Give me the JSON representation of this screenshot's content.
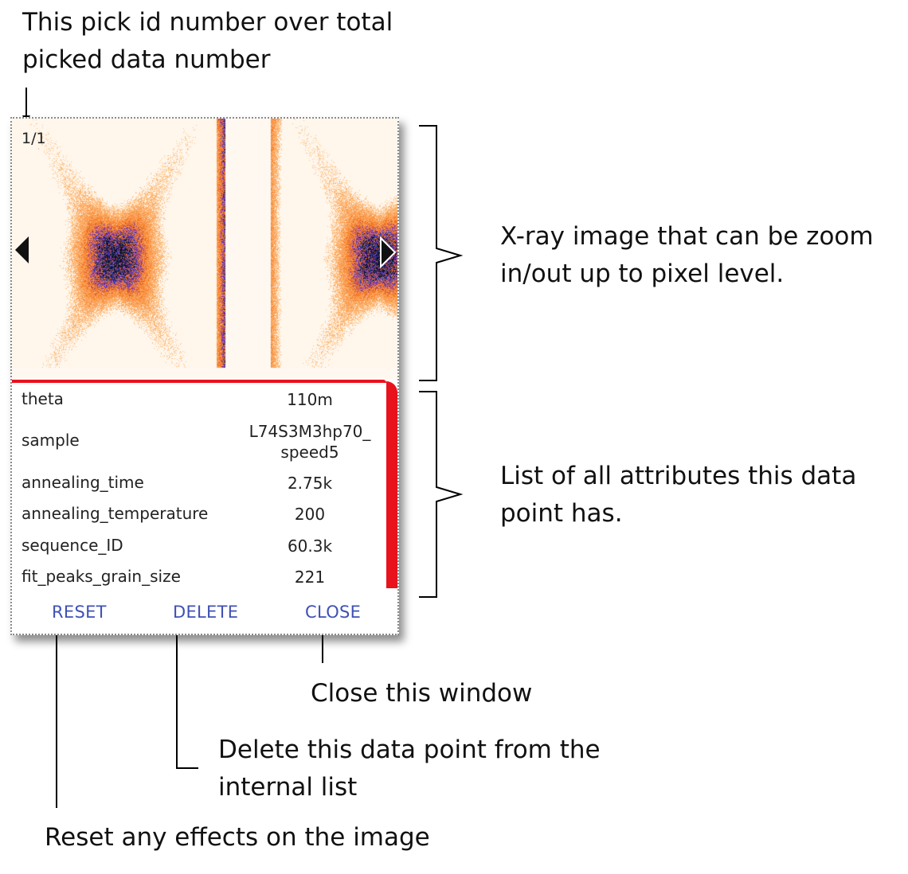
{
  "annotations": {
    "pick_id": [
      "This pick id number over total",
      "picked data number"
    ],
    "xray": [
      "X-ray image that can be zoom",
      "in/out up to pixel level."
    ],
    "attributes": [
      "List of all attributes this data",
      "point has."
    ],
    "close": [
      "Close this window"
    ],
    "delete": [
      "Delete this data point from the",
      "internal list"
    ],
    "reset": [
      "Reset any effects on the image"
    ]
  },
  "dialog": {
    "counter": "1/1",
    "attributes": [
      {
        "name": "theta",
        "value": "110m"
      },
      {
        "name": "sample",
        "value": "L74S3M3hp70_ speed5"
      },
      {
        "name": "annealing_time",
        "value": "2.75k"
      },
      {
        "name": "annealing_temperature",
        "value": "200"
      },
      {
        "name": "sequence_ID",
        "value": "60.3k"
      },
      {
        "name": "fit_peaks_grain_size",
        "value": "221"
      }
    ],
    "buttons": {
      "reset": "RESET",
      "delete": "DELETE",
      "close": "CLOSE"
    }
  },
  "colors": {
    "accent_red": "#e8121c",
    "button_blue": "#3f51b5",
    "xray_orange": "#f07a1a",
    "xray_purple": "#6a2bd0"
  }
}
